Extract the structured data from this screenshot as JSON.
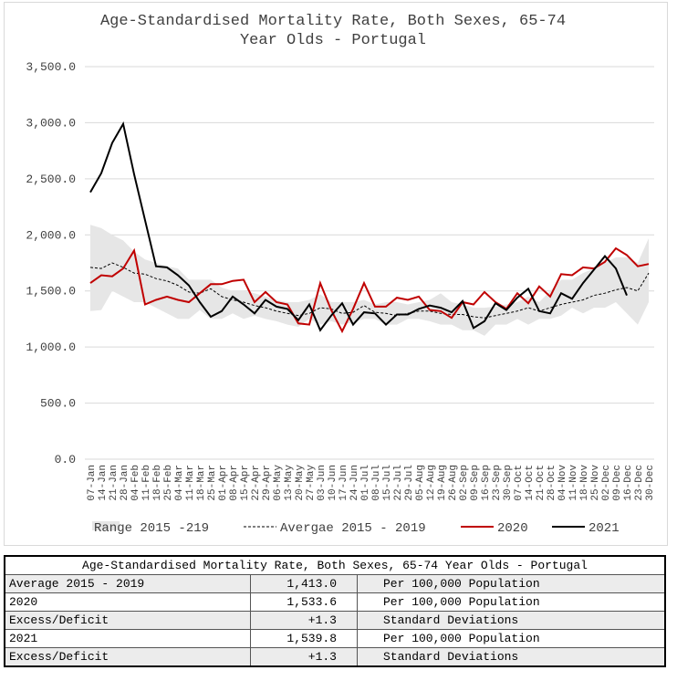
{
  "chart_data": {
    "type": "line",
    "title": "Age-Standardised Mortality Rate, Both Sexes, 65-74 Year Olds - Portugal",
    "categories": [
      "07-Jan",
      "14-Jan",
      "21-Jan",
      "28-Jan",
      "04-Feb",
      "11-Feb",
      "18-Feb",
      "25-Feb",
      "04-Mar",
      "11-Mar",
      "18-Mar",
      "25-Mar",
      "01-Apr",
      "08-Apr",
      "15-Apr",
      "22-Apr",
      "29-Apr",
      "06-May",
      "13-May",
      "20-May",
      "27-May",
      "03-Jun",
      "10-Jun",
      "17-Jun",
      "24-Jun",
      "01-Jul",
      "08-Jul",
      "15-Jul",
      "22-Jul",
      "29-Jul",
      "05-Aug",
      "12-Aug",
      "19-Aug",
      "26-Aug",
      "02-Sep",
      "09-Sep",
      "16-Sep",
      "23-Sep",
      "30-Sep",
      "07-Oct",
      "14-Oct",
      "21-Oct",
      "28-Oct",
      "04-Nov",
      "11-Nov",
      "18-Nov",
      "25-Nov",
      "02-Dec",
      "09-Dec",
      "16-Dec",
      "23-Dec",
      "30-Dec"
    ],
    "ylim": [
      0,
      3500
    ],
    "yticks": [
      {
        "value": 0,
        "label": "0.0"
      },
      {
        "value": 500,
        "label": "500.0"
      },
      {
        "value": 1000,
        "label": "1,000.0"
      },
      {
        "value": 1500,
        "label": "1,500.0"
      },
      {
        "value": 2000,
        "label": "2,000.0"
      },
      {
        "value": 2500,
        "label": "2,500.0"
      },
      {
        "value": 3000,
        "label": "3,000.0"
      },
      {
        "value": 3500,
        "label": "3,500.0"
      }
    ],
    "grid": true,
    "legend": "bottom",
    "series": [
      {
        "name": "Range 2015 -219",
        "type": "range",
        "color": "#e6e6e6",
        "low": [
          1320,
          1330,
          1500,
          1450,
          1400,
          1400,
          1350,
          1300,
          1250,
          1250,
          1330,
          1250,
          1250,
          1300,
          1250,
          1280,
          1250,
          1230,
          1200,
          1180,
          1250,
          1200,
          1230,
          1200,
          1220,
          1250,
          1250,
          1200,
          1200,
          1250,
          1250,
          1230,
          1200,
          1200,
          1150,
          1150,
          1100,
          1200,
          1200,
          1250,
          1200,
          1250,
          1250,
          1280,
          1350,
          1300,
          1350,
          1350,
          1400,
          1300,
          1200,
          1400
        ],
        "high": [
          2090,
          2060,
          2000,
          1950,
          1850,
          1780,
          1750,
          1720,
          1700,
          1600,
          1600,
          1600,
          1530,
          1500,
          1500,
          1480,
          1450,
          1420,
          1400,
          1400,
          1420,
          1470,
          1400,
          1400,
          1400,
          1420,
          1380,
          1400,
          1400,
          1380,
          1400,
          1420,
          1480,
          1400,
          1380,
          1350,
          1350,
          1360,
          1380,
          1400,
          1450,
          1400,
          1500,
          1600,
          1600,
          1660,
          1700,
          1750,
          1800,
          1800,
          1750,
          1970
        ]
      },
      {
        "name": "Avergae 2015 - 2019",
        "color": "#000000",
        "dashed": true,
        "values": [
          1710,
          1700,
          1750,
          1710,
          1660,
          1650,
          1610,
          1590,
          1550,
          1490,
          1480,
          1520,
          1450,
          1420,
          1400,
          1370,
          1350,
          1320,
          1300,
          1280,
          1300,
          1350,
          1340,
          1300,
          1310,
          1370,
          1310,
          1300,
          1280,
          1300,
          1320,
          1320,
          1300,
          1290,
          1290,
          1270,
          1260,
          1280,
          1300,
          1320,
          1350,
          1320,
          1350,
          1380,
          1400,
          1420,
          1460,
          1480,
          1510,
          1530,
          1500,
          1660
        ]
      },
      {
        "name": "2020",
        "color": "#c00000",
        "values": [
          1570,
          1640,
          1630,
          1700,
          1860,
          1380,
          1420,
          1450,
          1420,
          1400,
          1480,
          1560,
          1560,
          1590,
          1600,
          1400,
          1490,
          1400,
          1380,
          1210,
          1200,
          1570,
          1330,
          1140,
          1340,
          1570,
          1360,
          1360,
          1440,
          1420,
          1450,
          1330,
          1320,
          1260,
          1400,
          1380,
          1490,
          1400,
          1340,
          1480,
          1390,
          1540,
          1450,
          1650,
          1640,
          1710,
          1700,
          1760,
          1880,
          1820,
          1720,
          1740
        ]
      },
      {
        "name": "2021",
        "color": "#000000",
        "values": [
          2380,
          2550,
          2820,
          2990,
          2540,
          2130,
          1720,
          1710,
          1640,
          1550,
          1400,
          1270,
          1320,
          1450,
          1380,
          1300,
          1420,
          1360,
          1340,
          1240,
          1380,
          1150,
          1280,
          1390,
          1200,
          1310,
          1300,
          1200,
          1290,
          1290,
          1340,
          1370,
          1350,
          1310,
          1410,
          1170,
          1230,
          1390,
          1330,
          1440,
          1520,
          1320,
          1300,
          1480,
          1430,
          1570,
          1690,
          1810,
          1700,
          1460,
          null,
          null
        ]
      }
    ]
  },
  "table": {
    "title": "Age-Standardised Mortality Rate, Both Sexes, 65-74 Year Olds - Portugal",
    "rows": [
      [
        "Average 2015 - 2019",
        "1,413.0",
        "Per 100,000 Population"
      ],
      [
        "2020",
        "1,533.6",
        "Per 100,000 Population"
      ],
      [
        "Excess/Deficit",
        "+1.3",
        "Standard Deviations"
      ],
      [
        "2021",
        "1,539.8",
        "Per 100,000 Population"
      ],
      [
        "Excess/Deficit",
        "+1.3",
        "Standard Deviations"
      ]
    ]
  }
}
